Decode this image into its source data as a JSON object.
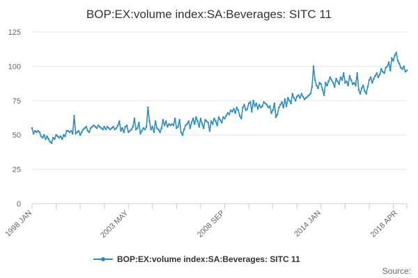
{
  "chart_data": {
    "type": "line",
    "title": "BOP:EX:volume index:SA:Beverages: SITC 11",
    "xlabel": "",
    "ylabel": "",
    "ylim": [
      0,
      125
    ],
    "yticks": [
      0,
      25,
      50,
      75,
      100,
      125
    ],
    "grid": true,
    "legend_position": "bottom-center",
    "series_color": "#2b8cc4",
    "x_range": [
      "1998 JAN",
      "2018 APR"
    ],
    "xtick_labels": [
      {
        "label": "1998 JAN",
        "index": 0
      },
      {
        "label": "2003 MAY",
        "index": 64
      },
      {
        "label": "2008 SEP",
        "index": 128
      },
      {
        "label": "2014 JAN",
        "index": 192
      },
      {
        "label": "2018 APR",
        "index": 243
      }
    ],
    "series": [
      {
        "name": "BOP:EX:volume index:SA:Beverages: SITC 11",
        "values": [
          55,
          51,
          53,
          52,
          53,
          52,
          49,
          48,
          50,
          47,
          49,
          47,
          45,
          44,
          48,
          47,
          50,
          49,
          48,
          49,
          47,
          50,
          49,
          53,
          53,
          52,
          53,
          51,
          64,
          51,
          52,
          53,
          50,
          52,
          54,
          55,
          56,
          53,
          52,
          55,
          56,
          57,
          56,
          55,
          57,
          56,
          55,
          54,
          56,
          54,
          56,
          55,
          54,
          55,
          56,
          54,
          55,
          57,
          60,
          53,
          55,
          52,
          56,
          57,
          52,
          53,
          54,
          56,
          62,
          54,
          55,
          59,
          51,
          53,
          55,
          54,
          56,
          70,
          60,
          54,
          56,
          52,
          60,
          55,
          54,
          52,
          55,
          61,
          57,
          60,
          56,
          58,
          57,
          58,
          57,
          62,
          55,
          56,
          61,
          52,
          50,
          54,
          57,
          58,
          60,
          55,
          59,
          62,
          58,
          63,
          60,
          56,
          62,
          58,
          55,
          61,
          60,
          59,
          53,
          60,
          58,
          62,
          60,
          57,
          63,
          61,
          59,
          63,
          62,
          64,
          66,
          65,
          68,
          67,
          69,
          66,
          70,
          68,
          64,
          62,
          70,
          72,
          68,
          69,
          73,
          74,
          67,
          75,
          71,
          73,
          69,
          72,
          70,
          71,
          74,
          73,
          72,
          70,
          71,
          66,
          68,
          73,
          63,
          65,
          70,
          72,
          74,
          70,
          76,
          71,
          77,
          75,
          73,
          80,
          77,
          75,
          78,
          79,
          77,
          80,
          78,
          76,
          77,
          78,
          79,
          80,
          85,
          100,
          90,
          86,
          84,
          88,
          87,
          83,
          79,
          88,
          86,
          89,
          92,
          90,
          88,
          85,
          91,
          89,
          87,
          92,
          90,
          95,
          88,
          89,
          86,
          93,
          90,
          87,
          88,
          86,
          95,
          83,
          80,
          84,
          86,
          82,
          80,
          85,
          90,
          92,
          88,
          91,
          93,
          95,
          92,
          94,
          98,
          96,
          95,
          99,
          100,
          103,
          97,
          106,
          104,
          108,
          110,
          104,
          102,
          99,
          98,
          100,
          96,
          97
        ]
      }
    ]
  },
  "legend": {
    "label": "BOP:EX:volume index:SA:Beverages: SITC 11"
  },
  "source": {
    "label": "Source:"
  }
}
